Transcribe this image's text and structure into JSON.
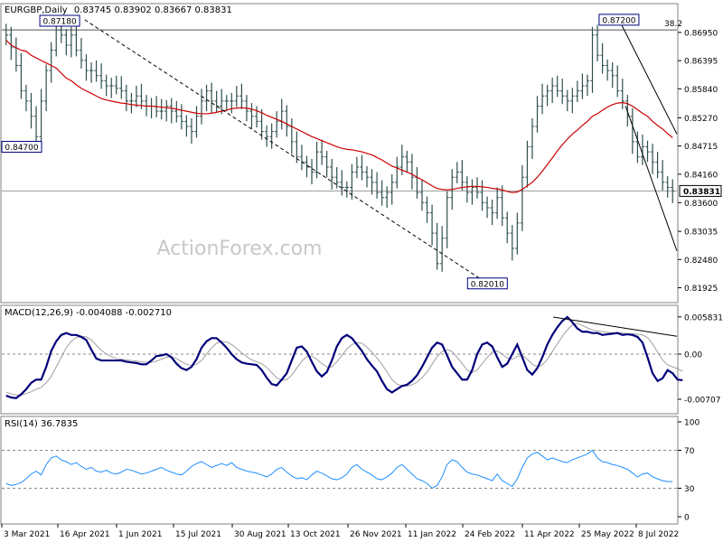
{
  "chart_data": [
    {
      "type": "candlestick",
      "symbol_label": "EURGBP,Daily",
      "ohlc_text": "0.83745 0.83902 0.83667 0.83831",
      "ylim": [
        0.8165,
        0.875
      ],
      "y_ticks": [
        "0.86950",
        "0.86395",
        "0.85840",
        "0.85270",
        "0.84715",
        "0.84160",
        "0.83600",
        "0.83035",
        "0.82480",
        "0.81925"
      ],
      "last_price": "0.83831",
      "x_ticks": [
        "3 Mar 2021",
        "16 Apr 2021",
        "1 Jun 2021",
        "15 Jul 2021",
        "30 Aug 2021",
        "13 Oct 2021",
        "26 Nov 2021",
        "11 Jan 2022",
        "24 Feb 2022",
        "11 Apr 2022",
        "25 May 2022",
        "8 Jul 2022"
      ],
      "x_range": [
        "2021-03-03",
        "2022-07-29"
      ],
      "annotations": [
        {
          "text": "0.87180",
          "date": "2021-04-16",
          "value": 0.8718
        },
        {
          "text": "0.84700",
          "date": "2021-03-03",
          "value": 0.847
        },
        {
          "text": "0.82010",
          "date": "2022-03-07",
          "value": 0.8201
        },
        {
          "text": "0.87200",
          "date": "2022-06-15",
          "value": 0.872
        }
      ],
      "fib_level": {
        "label": "38.2",
        "value": 0.87
      },
      "horizontal_line": 0.8383,
      "trendlines": [
        {
          "name": "falling-channel-top",
          "from": {
            "date": "2021-05-05",
            "value": 0.872
          },
          "to": {
            "date": "2022-03-07",
            "value": 0.8201
          }
        },
        {
          "name": "recent-channel-upper",
          "from": {
            "date": "2022-06-15",
            "value": 0.872
          },
          "to": {
            "date": "2022-07-29",
            "value": 0.8495
          }
        },
        {
          "name": "recent-channel-lower",
          "from": {
            "date": "2022-06-20",
            "value": 0.855
          },
          "to": {
            "date": "2022-07-29",
            "value": 0.8265
          }
        }
      ],
      "series": [
        {
          "kind": "close",
          "values": [
            0.869,
            0.8665,
            0.863,
            0.858,
            0.856,
            0.853,
            0.849,
            0.856,
            0.862,
            0.866,
            0.87,
            0.869,
            0.867,
            0.869,
            0.866,
            0.864,
            0.862,
            0.862,
            0.861,
            0.86,
            0.859,
            0.859,
            0.8585,
            0.858,
            0.856,
            0.856,
            0.857,
            0.856,
            0.855,
            0.855,
            0.854,
            0.854,
            0.855,
            0.854,
            0.853,
            0.852,
            0.851,
            0.85,
            0.853,
            0.856,
            0.858,
            0.856,
            0.855,
            0.856,
            0.856,
            0.856,
            0.857,
            0.856,
            0.854,
            0.853,
            0.852,
            0.85,
            0.849,
            0.85,
            0.852,
            0.854,
            0.851,
            0.848,
            0.845,
            0.844,
            0.843,
            0.842,
            0.846,
            0.845,
            0.843,
            0.841,
            0.84,
            0.839,
            0.839,
            0.842,
            0.843,
            0.842,
            0.841,
            0.84,
            0.838,
            0.837,
            0.838,
            0.84,
            0.843,
            0.845,
            0.844,
            0.841,
            0.838,
            0.836,
            0.834,
            0.83,
            0.824,
            0.829,
            0.837,
            0.841,
            0.842,
            0.84,
            0.838,
            0.839,
            0.838,
            0.836,
            0.835,
            0.834,
            0.837,
            0.833,
            0.83,
            0.827,
            0.832,
            0.841,
            0.847,
            0.851,
            0.855,
            0.857,
            0.858,
            0.859,
            0.858,
            0.857,
            0.856,
            0.857,
            0.858,
            0.859,
            0.86,
            0.869,
            0.865,
            0.863,
            0.862,
            0.861,
            0.858,
            0.856,
            0.853,
            0.848,
            0.845,
            0.847,
            0.846,
            0.844,
            0.842,
            0.84,
            0.839,
            0.8383
          ]
        },
        {
          "kind": "ma",
          "color": "#cc0000",
          "values": [
            0.868,
            0.867,
            0.8665,
            0.866,
            0.8658,
            0.865,
            0.8645,
            0.864,
            0.8635,
            0.863,
            0.8625,
            0.8615,
            0.8605,
            0.86,
            0.8592,
            0.8585,
            0.858,
            0.8575,
            0.857,
            0.8565,
            0.8562,
            0.856,
            0.8558,
            0.8556,
            0.8555,
            0.8553,
            0.8552,
            0.8551,
            0.855,
            0.855,
            0.8549,
            0.8548,
            0.8547,
            0.8546,
            0.8544,
            0.8542,
            0.854,
            0.8538,
            0.8536,
            0.8535,
            0.8535,
            0.8536,
            0.8538,
            0.854,
            0.8542,
            0.8545,
            0.8546,
            0.8547,
            0.8546,
            0.8544,
            0.8541,
            0.8537,
            0.8532,
            0.8528,
            0.8524,
            0.852,
            0.8515,
            0.851,
            0.8505,
            0.85,
            0.8495,
            0.849,
            0.8486,
            0.8482,
            0.8478,
            0.8474,
            0.847,
            0.8467,
            0.8465,
            0.8464,
            0.8462,
            0.846,
            0.8457,
            0.8454,
            0.8449,
            0.8444,
            0.8438,
            0.8432,
            0.8428,
            0.8424,
            0.842,
            0.8416,
            0.841,
            0.8405,
            0.8399,
            0.8393,
            0.8388,
            0.8386,
            0.8385,
            0.8386,
            0.8388,
            0.839,
            0.8391,
            0.8392,
            0.8392,
            0.8391,
            0.839,
            0.8388,
            0.8387,
            0.8385,
            0.8382,
            0.838,
            0.8381,
            0.8386,
            0.8393,
            0.84,
            0.841,
            0.8422,
            0.8435,
            0.8448,
            0.8462,
            0.8474,
            0.8485,
            0.8495,
            0.8503,
            0.8512,
            0.852,
            0.853,
            0.8535,
            0.8542,
            0.8548,
            0.8553,
            0.8556,
            0.8557,
            0.8555,
            0.855,
            0.8543,
            0.8536,
            0.853,
            0.852,
            0.8512,
            0.8505,
            0.8496,
            0.8488
          ]
        }
      ]
    },
    {
      "type": "line",
      "label": "MACD(12,26,9) -0.004088 -0.002710",
      "ylim": [
        -0.0092,
        0.0075
      ],
      "y_ticks": [
        "0.005831",
        "0.00",
        "-0.00707"
      ],
      "series": [
        {
          "kind": "macd",
          "color": "#00007a",
          "values": [
            -0.0065,
            -0.0068,
            -0.0069,
            -0.0063,
            -0.0055,
            -0.0045,
            -0.004,
            -0.004,
            -0.002,
            0.0005,
            0.002,
            0.003,
            0.0033,
            0.003,
            0.003,
            0.0027,
            0.0022,
            0.0007,
            -0.0007,
            -0.001,
            -0.001,
            -0.001,
            -0.001,
            -0.001,
            -0.0012,
            -0.0013,
            -0.0014,
            -0.0016,
            -0.0016,
            -0.001,
            -0.0003,
            -0.0002,
            0.0,
            -0.0005,
            -0.0015,
            -0.0022,
            -0.0025,
            -0.002,
            -0.0008,
            0.001,
            0.002,
            0.0025,
            0.0025,
            0.0018,
            0.001,
            0.0,
            -0.0008,
            -0.0013,
            -0.0015,
            -0.0016,
            -0.0017,
            -0.0025,
            -0.0037,
            -0.0047,
            -0.0049,
            -0.004,
            -0.003,
            -0.001,
            0.001,
            0.0012,
            0.0004,
            -0.0012,
            -0.0027,
            -0.0035,
            -0.0028,
            -0.001,
            0.0012,
            0.0025,
            0.003,
            0.0025,
            0.0015,
            0.0005,
            -0.0008,
            -0.0018,
            -0.0027,
            -0.0042,
            -0.0055,
            -0.006,
            -0.0055,
            -0.005,
            -0.0048,
            -0.0042,
            -0.0033,
            -0.002,
            -0.0005,
            0.001,
            0.0018,
            0.0015,
            -0.0002,
            -0.002,
            -0.003,
            -0.004,
            -0.004,
            -0.0025,
            0.0,
            0.0015,
            0.0018,
            0.0012,
            -0.0005,
            -0.002,
            -0.0015,
            0.0,
            0.0015,
            -0.0005,
            -0.0025,
            -0.0032,
            -0.0022,
            -0.0005,
            0.0015,
            0.003,
            0.0042,
            0.0052,
            0.0058,
            0.005,
            0.004,
            0.0035,
            0.0035,
            0.0033,
            0.0033,
            0.003,
            0.0031,
            0.0032,
            0.0033,
            0.003,
            0.0031,
            0.003,
            0.0027,
            0.0018,
            -0.0005,
            -0.003,
            -0.0042,
            -0.0038,
            -0.0025,
            -0.003,
            -0.004,
            -0.0041
          ]
        },
        {
          "kind": "signal",
          "color": "#a0a0a0",
          "values": [
            -0.006,
            -0.0062,
            -0.0064,
            -0.0064,
            -0.0062,
            -0.0059,
            -0.0055,
            -0.0052,
            -0.0045,
            -0.0035,
            -0.002,
            -0.0005,
            0.001,
            0.002,
            0.0026,
            0.0028,
            0.0027,
            0.0022,
            0.0014,
            0.0006,
            0.0,
            -0.0004,
            -0.0007,
            -0.0008,
            -0.0009,
            -0.001,
            -0.0011,
            -0.0012,
            -0.0013,
            -0.0013,
            -0.0011,
            -0.0008,
            -0.0005,
            -0.0004,
            -0.0007,
            -0.0012,
            -0.0016,
            -0.0018,
            -0.0016,
            -0.001,
            0.0,
            0.001,
            0.0017,
            0.002,
            0.0019,
            0.0015,
            0.0009,
            0.0002,
            -0.0004,
            -0.0009,
            -0.0012,
            -0.0015,
            -0.0021,
            -0.0029,
            -0.0037,
            -0.0041,
            -0.004,
            -0.0033,
            -0.0022,
            -0.0011,
            -0.0004,
            -0.0003,
            -0.0008,
            -0.0015,
            -0.002,
            -0.002,
            -0.0012,
            -0.0002,
            0.0008,
            0.0015,
            0.0018,
            0.0017,
            0.0011,
            0.0003,
            -0.0006,
            -0.0016,
            -0.0028,
            -0.004,
            -0.0047,
            -0.005,
            -0.005,
            -0.0048,
            -0.0044,
            -0.0037,
            -0.0028,
            -0.0016,
            -0.0004,
            0.0004,
            0.0007,
            0.0004,
            -0.0005,
            -0.0015,
            -0.0025,
            -0.0029,
            -0.0025,
            -0.0015,
            -0.0005,
            0.0003,
            0.0005,
            0.0,
            -0.0006,
            -0.0008,
            -0.0004,
            -0.0002,
            -0.0008,
            -0.0016,
            -0.002,
            -0.0017,
            -0.0008,
            0.0004,
            0.0016,
            0.0028,
            0.0038,
            0.0046,
            0.0048,
            0.0045,
            0.0041,
            0.0038,
            0.0036,
            0.0035,
            0.0034,
            0.0033,
            0.0033,
            0.0033,
            0.0032,
            0.0032,
            0.0031,
            0.003,
            0.0026,
            0.0016,
            0.0003,
            -0.0009,
            -0.0017,
            -0.002,
            -0.0023,
            -0.0027
          ]
        }
      ],
      "trendline": {
        "from": {
          "date": "2022-04-26",
          "value": 0.0058
        },
        "to": {
          "date": "2022-07-29",
          "value": 0.0028
        }
      }
    },
    {
      "type": "line",
      "label": "RSI(14) 36.7835",
      "ylim": [
        0,
        100
      ],
      "y_ticks": [
        "100",
        "70",
        "30",
        "0"
      ],
      "levels": [
        70,
        30
      ],
      "series": [
        {
          "kind": "rsi",
          "color": "#1e90ff",
          "values": [
            35,
            33,
            34,
            36,
            40,
            45,
            48,
            44,
            55,
            62,
            64,
            60,
            58,
            55,
            57,
            53,
            50,
            52,
            48,
            47,
            49,
            46,
            45,
            47,
            50,
            49,
            47,
            45,
            46,
            48,
            50,
            52,
            49,
            47,
            45,
            44,
            48,
            53,
            56,
            58,
            55,
            52,
            54,
            56,
            54,
            57,
            52,
            50,
            48,
            47,
            46,
            44,
            42,
            45,
            50,
            52,
            47,
            43,
            40,
            41,
            39,
            44,
            48,
            46,
            43,
            40,
            39,
            41,
            45,
            52,
            55,
            50,
            47,
            44,
            40,
            39,
            42,
            46,
            52,
            55,
            50,
            45,
            40,
            38,
            35,
            30,
            33,
            42,
            55,
            60,
            58,
            52,
            47,
            45,
            44,
            42,
            40,
            38,
            45,
            38,
            35,
            32,
            40,
            52,
            62,
            66,
            68,
            64,
            60,
            62,
            60,
            58,
            57,
            60,
            62,
            64,
            66,
            70,
            62,
            58,
            57,
            55,
            54,
            52,
            50,
            46,
            42,
            45,
            46,
            42,
            40,
            38,
            37,
            37
          ]
        }
      ]
    }
  ],
  "watermark": "ActionForex.com"
}
